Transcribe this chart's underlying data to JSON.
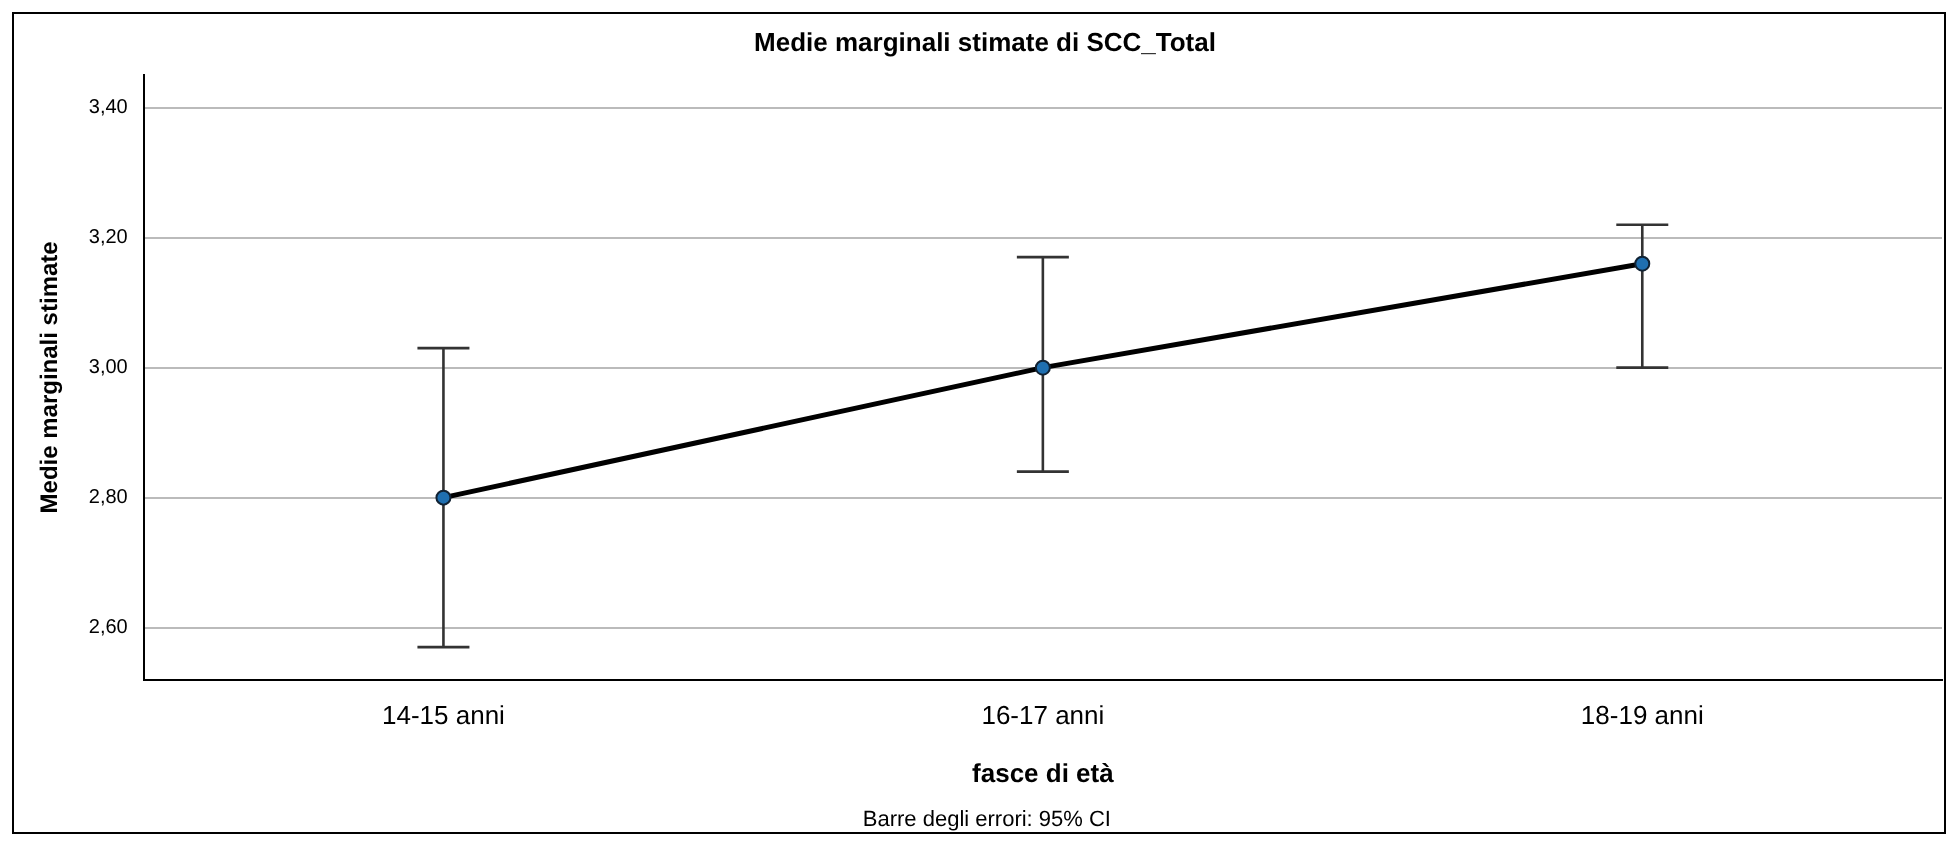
{
  "chart_data": {
    "type": "line",
    "title": "Medie marginali stimate di SCC_Total",
    "xlabel": "fasce di età",
    "ylabel": "Medie marginali stimate",
    "categories": [
      "14-15 anni",
      "16-17 anni",
      "18-19 anni"
    ],
    "series": [
      {
        "color": "#000000",
        "values": [
          2.8,
          3.0,
          3.16
        ],
        "errors": [
          [
            2.57,
            3.03
          ],
          [
            2.84,
            3.17
          ],
          [
            3.0,
            3.22
          ]
        ]
      }
    ],
    "ylim": [
      2.52,
      3.45
    ],
    "yticks": [
      {
        "value": 2.6,
        "label": "2,60"
      },
      {
        "value": 2.8,
        "label": "2,80"
      },
      {
        "value": 3.0,
        "label": "3,00"
      },
      {
        "value": 3.2,
        "label": "3,20"
      },
      {
        "value": 3.4,
        "label": "3,40"
      }
    ],
    "grid": "y",
    "legend": false,
    "marker": "circle",
    "line_style": "solid",
    "annotations": [
      "Barre degli errori: 95% CI"
    ]
  }
}
